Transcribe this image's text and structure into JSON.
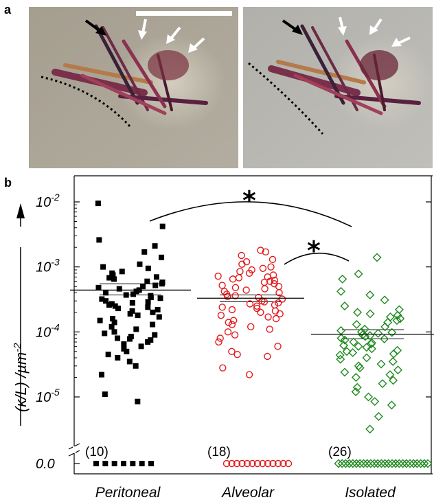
{
  "panel_a": {
    "letter": "a",
    "image_left": "micrograph-left",
    "image_right": "micrograph-right"
  },
  "panel_b": {
    "letter": "b"
  },
  "chart_data": {
    "type": "scatter",
    "title": "",
    "ylabel": "(κ/L) /µm⁻²",
    "ylabel_parts": {
      "main": "(κ/L) /µm",
      "exp": "-2"
    },
    "yscale": "log",
    "ylim": [
      5e-06,
      0.012
    ],
    "y_ticks": [
      {
        "value": 0.01,
        "base": "10",
        "exp": "-2"
      },
      {
        "value": 0.001,
        "base": "10",
        "exp": "-3"
      },
      {
        "value": 0.0001,
        "base": "10",
        "exp": "-4"
      },
      {
        "value": 1e-05,
        "base": "10",
        "exp": "-5"
      }
    ],
    "zero_tick_label": "0.0",
    "axis_break": true,
    "categories": [
      "Peritoneal",
      "Alveolar",
      "Isolated"
    ],
    "colors": {
      "Peritoneal": "#000000",
      "Alveolar": "#e31a1c",
      "Isolated": "#1f8a1f"
    },
    "markers": {
      "Peritoneal": "filled-square",
      "Alveolar": "open-circle",
      "Isolated": "open-diamond"
    },
    "zero_counts": [
      "(10)",
      "(18)",
      "(26)"
    ],
    "means": [
      0.00044,
      0.00033,
      9.2e-05
    ],
    "sem": [
      [
        0.00037,
        0.00055
      ],
      [
        0.00029,
        0.00037
      ],
      [
        7.8e-05,
        0.000108
      ]
    ],
    "significance": [
      {
        "from": "Peritoneal",
        "to": "Isolated",
        "label": "*"
      },
      {
        "from": "Alveolar",
        "to": "Isolated",
        "label": "*"
      }
    ],
    "series": [
      {
        "values": [
          0.0095,
          0.0042,
          0.0026,
          0.0021,
          0.0017,
          0.0014,
          0.0011,
          0.001,
          0.00095,
          0.00085,
          0.0008,
          0.00075,
          0.0007,
          0.00068,
          0.00065,
          0.0006,
          0.00058,
          0.00055,
          0.00052,
          0.0005,
          0.00048,
          0.00046,
          0.00044,
          0.00042,
          0.0004,
          0.00038,
          0.00037,
          0.00036,
          0.00034,
          0.00033,
          0.00032,
          0.0003,
          0.00029,
          0.00028,
          0.00027,
          0.00026,
          0.00025,
          0.00024,
          0.00023,
          0.00022,
          0.00021,
          0.0002,
          0.00019,
          0.00018,
          0.00017,
          0.00016,
          0.00015,
          0.00014,
          0.00013,
          0.00012,
          0.00011,
          0.0001,
          9.5e-05,
          9e-05,
          8.5e-05,
          8e-05,
          7.8e-05,
          7.5e-05,
          7e-05,
          6.5e-05,
          6e-05,
          5.5e-05,
          5e-05,
          4.5e-05,
          4e-05,
          3.5e-05,
          3e-05,
          2.2e-05,
          1.1e-05,
          8.5e-06
        ]
      },
      {
        "values": [
          0.0018,
          0.0017,
          0.0015,
          0.0013,
          0.0012,
          0.0011,
          0.001,
          0.00095,
          0.0009,
          0.00085,
          0.0008,
          0.00075,
          0.00072,
          0.0007,
          0.00068,
          0.00065,
          0.00062,
          0.0006,
          0.00058,
          0.00055,
          0.00052,
          0.0005,
          0.00048,
          0.00046,
          0.00044,
          0.00042,
          0.0004,
          0.00038,
          0.00036,
          0.00035,
          0.00034,
          0.00032,
          0.0003,
          0.00029,
          0.00028,
          0.00027,
          0.00026,
          0.00025,
          0.00024,
          0.00023,
          0.00022,
          0.00021,
          0.0002,
          0.00019,
          0.00018,
          0.00017,
          0.00016,
          0.00015,
          0.00014,
          0.00013,
          0.00012,
          0.00011,
          0.0001,
          9e-05,
          8e-05,
          7e-05,
          6e-05,
          5e-05,
          4.5e-05,
          4.2e-05,
          2.8e-05,
          2.2e-05
        ]
      },
      {
        "values": [
          0.0014,
          0.00078,
          0.00065,
          0.00042,
          0.00037,
          0.00031,
          0.00025,
          0.00022,
          0.0002,
          0.00019,
          0.00018,
          0.00017,
          0.00016,
          0.00015,
          0.00014,
          0.00013,
          0.00012,
          0.00011,
          0.000105,
          0.0001,
          9.8e-05,
          9.5e-05,
          9e-05,
          8.8e-05,
          8.5e-05,
          8e-05,
          7.8e-05,
          7.5e-05,
          7e-05,
          6.8e-05,
          6.5e-05,
          6.2e-05,
          6e-05,
          5.8e-05,
          5.5e-05,
          5.2e-05,
          5e-05,
          4.8e-05,
          4.6e-05,
          4.4e-05,
          4e-05,
          3.8e-05,
          3.5e-05,
          3.2e-05,
          3e-05,
          2.8e-05,
          2.6e-05,
          2.4e-05,
          2.2e-05,
          2e-05,
          1.8e-05,
          1.6e-05,
          1.4e-05,
          1.2e-05,
          1e-05,
          8.5e-06,
          7.5e-06,
          5e-06,
          3.2e-06
        ]
      }
    ]
  }
}
